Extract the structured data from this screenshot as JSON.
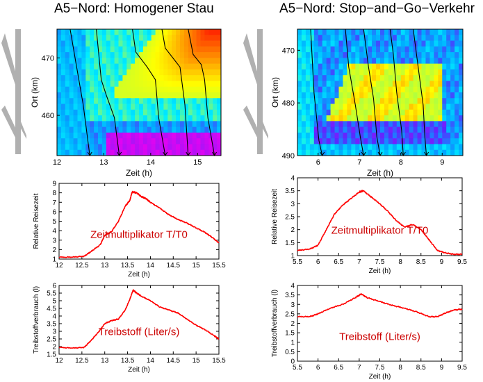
{
  "titles": {
    "left": "A5−Nord: Homogener Stau",
    "right": "A5−Nord: Stop−and−Go−Verkehr"
  },
  "chart_data": [
    {
      "id": "left-heatmap",
      "type": "heatmap",
      "xlabel": "Zeit (h)",
      "ylabel": "Ort (km)",
      "xticks": [
        "12",
        "13",
        "14",
        "15"
      ],
      "yticks": [
        "460",
        "470"
      ],
      "xlim": [
        12,
        15.5
      ],
      "ylim": [
        453,
        475
      ]
    },
    {
      "id": "right-heatmap",
      "type": "heatmap",
      "xlabel": "Zeit (h)",
      "ylabel": "Ort (km)",
      "xticks": [
        "6",
        "7",
        "8",
        "9"
      ],
      "yticks": [
        "470",
        "480",
        "490"
      ],
      "xlim": [
        5.5,
        9.5
      ],
      "ylim": [
        490,
        466
      ]
    },
    {
      "id": "left-travel-time",
      "type": "line",
      "xlabel": "Zeit (h)",
      "ylabel": "Relative Reisezeit",
      "annotation": "Zeitmultiplikator T/T0",
      "xlim": [
        12,
        15.5
      ],
      "ylim": [
        1,
        9
      ],
      "xticks": [
        "12",
        "12.5",
        "13",
        "13.5",
        "14",
        "14.5",
        "15",
        "15.5"
      ],
      "yticks": [
        "1",
        "2",
        "3",
        "4",
        "5",
        "6",
        "7",
        "8",
        "9"
      ],
      "series": [
        {
          "x": [
            12,
            12.3,
            12.55,
            12.7,
            12.9,
            13.0,
            13.15,
            13.3,
            13.45,
            13.55,
            13.6,
            13.7,
            13.8,
            13.9,
            14.0,
            14.2,
            14.4,
            14.6,
            14.8,
            15.0,
            15.2,
            15.35,
            15.5
          ],
          "y": [
            1.2,
            1.2,
            1.3,
            1.8,
            2.5,
            3.5,
            3.9,
            5.0,
            6.6,
            7.2,
            8.1,
            8.0,
            7.6,
            7.4,
            7.0,
            6.4,
            5.7,
            5.2,
            4.8,
            4.3,
            3.8,
            3.3,
            2.7
          ]
        }
      ]
    },
    {
      "id": "right-travel-time",
      "type": "line",
      "xlabel": "Zeit (h)",
      "ylabel": "Relative Reisezeit",
      "annotation": "Zeitmultiplikator T/T0",
      "xlim": [
        5.5,
        9.5
      ],
      "ylim": [
        1,
        4
      ],
      "xticks": [
        "5.5",
        "6",
        "6.5",
        "7",
        "7.5",
        "8",
        "8.5",
        "9",
        "9.5"
      ],
      "yticks": [
        "1",
        "1.5",
        "2",
        "2.5",
        "3",
        "3.5",
        "4"
      ],
      "series": [
        {
          "x": [
            5.5,
            5.8,
            6.0,
            6.2,
            6.4,
            6.6,
            6.8,
            7.0,
            7.1,
            7.3,
            7.5,
            7.7,
            7.9,
            8.1,
            8.3,
            8.5,
            8.7,
            8.9,
            9.1,
            9.3,
            9.5
          ],
          "y": [
            1.2,
            1.25,
            1.4,
            2.0,
            2.6,
            2.95,
            3.2,
            3.45,
            3.5,
            3.25,
            3.0,
            2.7,
            2.35,
            2.1,
            2.2,
            2.0,
            1.6,
            1.2,
            1.1,
            1.05,
            1.05
          ]
        }
      ]
    },
    {
      "id": "left-fuel",
      "type": "line",
      "xlabel": "Zeit (h)",
      "ylabel": "Treibstoffverbrauch (l)",
      "annotation": "Treibstoff (Liter/s)",
      "xlim": [
        12,
        15.5
      ],
      "ylim": [
        1.5,
        6
      ],
      "xticks": [
        "12",
        "12.5",
        "13",
        "13.5",
        "14",
        "14.5",
        "15",
        "15.5"
      ],
      "yticks": [
        "1.5",
        "2",
        "2.5",
        "3",
        "3.5",
        "4",
        "4.5",
        "5",
        "5.5",
        "6"
      ],
      "series": [
        {
          "x": [
            12,
            12.3,
            12.55,
            12.7,
            12.85,
            13.0,
            13.15,
            13.3,
            13.45,
            13.55,
            13.62,
            13.7,
            13.8,
            14.0,
            14.2,
            14.4,
            14.6,
            14.8,
            15.0,
            15.2,
            15.4,
            15.5
          ],
          "y": [
            1.95,
            1.9,
            1.95,
            2.4,
            2.9,
            3.5,
            3.7,
            3.8,
            4.4,
            5.1,
            5.7,
            5.5,
            5.3,
            5.0,
            4.6,
            4.4,
            4.2,
            3.8,
            3.4,
            3.1,
            2.7,
            2.5
          ]
        }
      ]
    },
    {
      "id": "right-fuel",
      "type": "line",
      "xlabel": "Zeit (h)",
      "ylabel": "Treibstoffverbrauch (l)",
      "annotation": "Treibstoff (Liter/s)",
      "xlim": [
        5.5,
        9.5
      ],
      "ylim": [
        0,
        4
      ],
      "xticks": [
        "5.5",
        "6",
        "6.5",
        "7",
        "7.5",
        "8",
        "8.5",
        "9",
        "9.5"
      ],
      "yticks": [
        "0",
        "0.5",
        "1",
        "1.5",
        "2",
        "2.5",
        "3",
        "3.5",
        "4"
      ],
      "series": [
        {
          "x": [
            5.5,
            5.8,
            6.0,
            6.3,
            6.6,
            6.9,
            7.05,
            7.2,
            7.5,
            7.8,
            8.1,
            8.4,
            8.7,
            8.9,
            9.1,
            9.3,
            9.5
          ],
          "y": [
            2.35,
            2.35,
            2.5,
            2.8,
            3.0,
            3.35,
            3.55,
            3.35,
            3.15,
            2.95,
            2.8,
            2.6,
            2.35,
            2.35,
            2.55,
            2.7,
            2.75
          ]
        }
      ]
    }
  ]
}
